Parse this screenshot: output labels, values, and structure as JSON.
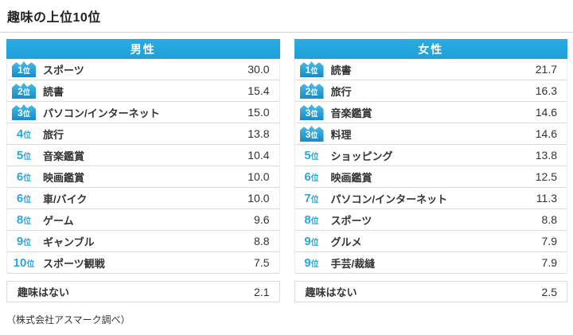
{
  "page_title": "趣味の上位10位",
  "source_note": "（株式会社アスマーク調べ）",
  "rank_suffix": "位",
  "colors": {
    "header_blue": "#29abe2",
    "crown_blue_top": "#49bce9",
    "crown_blue_bottom": "#158bc9",
    "rank_blue": "#2aa6de",
    "border_gray": "#dcdcdc",
    "text_dark": "#333333"
  },
  "chart_data": {
    "type": "table",
    "title": "趣味の上位10位",
    "source_note": "（株式会社アスマーク調べ）",
    "value_unit": "%",
    "groups": [
      {
        "header": "男性",
        "rows": [
          {
            "rank": 1,
            "crown": true,
            "label": "スポーツ",
            "value": "30.0"
          },
          {
            "rank": 2,
            "crown": true,
            "label": "読書",
            "value": "15.4"
          },
          {
            "rank": 3,
            "crown": true,
            "label": "パソコン/インターネット",
            "value": "15.0"
          },
          {
            "rank": 4,
            "crown": false,
            "label": "旅行",
            "value": "13.8"
          },
          {
            "rank": 5,
            "crown": false,
            "label": "音楽鑑賞",
            "value": "10.4"
          },
          {
            "rank": 6,
            "crown": false,
            "label": "映画鑑賞",
            "value": "10.0"
          },
          {
            "rank": 6,
            "crown": false,
            "label": "車/バイク",
            "value": "10.0"
          },
          {
            "rank": 8,
            "crown": false,
            "label": "ゲーム",
            "value": "9.6"
          },
          {
            "rank": 9,
            "crown": false,
            "label": "ギャンブル",
            "value": "8.8"
          },
          {
            "rank": 10,
            "crown": false,
            "label": "スポーツ観戦",
            "value": "7.5"
          }
        ],
        "no_hobby": {
          "label": "趣味はない",
          "value": "2.1"
        }
      },
      {
        "header": "女性",
        "rows": [
          {
            "rank": 1,
            "crown": true,
            "label": "読書",
            "value": "21.7"
          },
          {
            "rank": 2,
            "crown": true,
            "label": "旅行",
            "value": "16.3"
          },
          {
            "rank": 3,
            "crown": true,
            "label": "音楽鑑賞",
            "value": "14.6"
          },
          {
            "rank": 3,
            "crown": true,
            "label": "料理",
            "value": "14.6"
          },
          {
            "rank": 5,
            "crown": false,
            "label": "ショッピング",
            "value": "13.8"
          },
          {
            "rank": 6,
            "crown": false,
            "label": "映画鑑賞",
            "value": "12.5"
          },
          {
            "rank": 7,
            "crown": false,
            "label": "パソコン/インターネット",
            "value": "11.3"
          },
          {
            "rank": 8,
            "crown": false,
            "label": "スポーツ",
            "value": "8.8"
          },
          {
            "rank": 9,
            "crown": false,
            "label": "グルメ",
            "value": "7.9"
          },
          {
            "rank": 9,
            "crown": false,
            "label": "手芸/裁縫",
            "value": "7.9"
          }
        ],
        "no_hobby": {
          "label": "趣味はない",
          "value": "2.5"
        }
      }
    ]
  }
}
